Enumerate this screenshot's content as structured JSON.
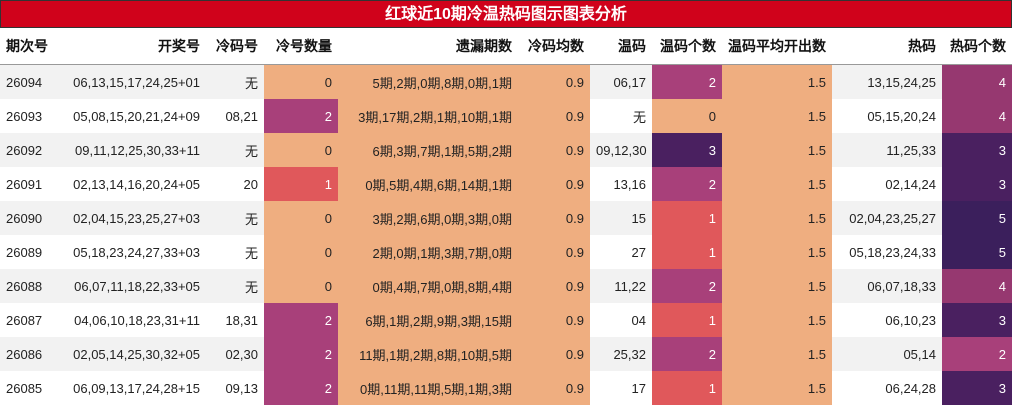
{
  "title": "红球近10期冷温热码图示图表分析",
  "headers": [
    "期次号",
    "开奖号",
    "冷码号",
    "冷号数量",
    "遗漏期数",
    "冷码均数",
    "温码",
    "温码个数",
    "温码平均开出数",
    "热码",
    "热码个数"
  ],
  "colors": {
    "title_bg": "#d0021b",
    "peach": "#efae80",
    "level_1": "#e0585b",
    "level_2": "#a8407a",
    "level_3": "#4a2060",
    "level_4": "#963870",
    "level_5": "#3b1f5c"
  },
  "rows": [
    {
      "issue": "26094",
      "draw": "06,13,15,17,24,25+01",
      "cold": "无",
      "cold_count": "0",
      "miss": "5期,2期,0期,8期,0期,1期",
      "cold_avg": "0.9",
      "warm": "06,17",
      "warm_count": "2",
      "warm_avg": "1.5",
      "hot": "13,15,24,25",
      "hot_count": "4"
    },
    {
      "issue": "26093",
      "draw": "05,08,15,20,21,24+09",
      "cold": "08,21",
      "cold_count": "2",
      "miss": "3期,17期,2期,1期,10期,1期",
      "cold_avg": "0.9",
      "warm": "无",
      "warm_count": "0",
      "warm_avg": "1.5",
      "hot": "05,15,20,24",
      "hot_count": "4"
    },
    {
      "issue": "26092",
      "draw": "09,11,12,25,30,33+11",
      "cold": "无",
      "cold_count": "0",
      "miss": "6期,3期,7期,1期,5期,2期",
      "cold_avg": "0.9",
      "warm": "09,12,30",
      "warm_count": "3",
      "warm_avg": "1.5",
      "hot": "11,25,33",
      "hot_count": "3"
    },
    {
      "issue": "26091",
      "draw": "02,13,14,16,20,24+05",
      "cold": "20",
      "cold_count": "1",
      "miss": "0期,5期,4期,6期,14期,1期",
      "cold_avg": "0.9",
      "warm": "13,16",
      "warm_count": "2",
      "warm_avg": "1.5",
      "hot": "02,14,24",
      "hot_count": "3"
    },
    {
      "issue": "26090",
      "draw": "02,04,15,23,25,27+03",
      "cold": "无",
      "cold_count": "0",
      "miss": "3期,2期,6期,0期,3期,0期",
      "cold_avg": "0.9",
      "warm": "15",
      "warm_count": "1",
      "warm_avg": "1.5",
      "hot": "02,04,23,25,27",
      "hot_count": "5"
    },
    {
      "issue": "26089",
      "draw": "05,18,23,24,27,33+03",
      "cold": "无",
      "cold_count": "0",
      "miss": "2期,0期,1期,3期,7期,0期",
      "cold_avg": "0.9",
      "warm": "27",
      "warm_count": "1",
      "warm_avg": "1.5",
      "hot": "05,18,23,24,33",
      "hot_count": "5"
    },
    {
      "issue": "26088",
      "draw": "06,07,11,18,22,33+05",
      "cold": "无",
      "cold_count": "0",
      "miss": "0期,4期,7期,0期,8期,4期",
      "cold_avg": "0.9",
      "warm": "11,22",
      "warm_count": "2",
      "warm_avg": "1.5",
      "hot": "06,07,18,33",
      "hot_count": "4"
    },
    {
      "issue": "26087",
      "draw": "04,06,10,18,23,31+11",
      "cold": "18,31",
      "cold_count": "2",
      "miss": "6期,1期,2期,9期,3期,15期",
      "cold_avg": "0.9",
      "warm": "04",
      "warm_count": "1",
      "warm_avg": "1.5",
      "hot": "06,10,23",
      "hot_count": "3"
    },
    {
      "issue": "26086",
      "draw": "02,05,14,25,30,32+05",
      "cold": "02,30",
      "cold_count": "2",
      "miss": "11期,1期,2期,8期,10期,5期",
      "cold_avg": "0.9",
      "warm": "25,32",
      "warm_count": "2",
      "warm_avg": "1.5",
      "hot": "05,14",
      "hot_count": "2"
    },
    {
      "issue": "26085",
      "draw": "06,09,13,17,24,28+15",
      "cold": "09,13",
      "cold_count": "2",
      "miss": "0期,11期,11期,5期,1期,3期",
      "cold_avg": "0.9",
      "warm": "17",
      "warm_count": "1",
      "warm_avg": "1.5",
      "hot": "06,24,28",
      "hot_count": "3"
    }
  ]
}
